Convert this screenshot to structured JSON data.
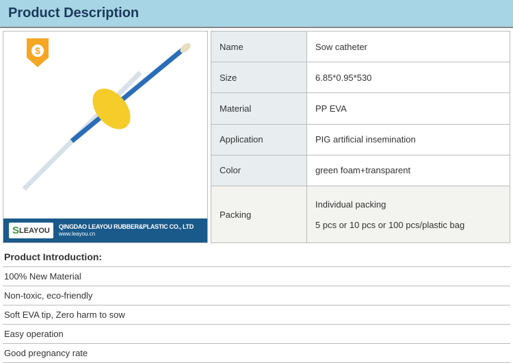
{
  "header": {
    "title": "Product Description"
  },
  "image": {
    "badge_color": "#f5a623",
    "footer": {
      "logo_text": "LEAYOU",
      "company": "QINGDAO LEAYOU RUBBER&PLASTIC CO., LTD",
      "url": "www.leayou.cn"
    }
  },
  "specs": [
    {
      "label": "Name",
      "value": "Sow catheter"
    },
    {
      "label": "Size",
      "value": "6.85*0.95*530"
    },
    {
      "label": "Material",
      "value": " PP EVA"
    },
    {
      "label": "Application",
      "value": "PIG artificial insemination"
    },
    {
      "label": "Color",
      "value": "green foam+transparent"
    },
    {
      "label": "Packing",
      "value": "Individual packing\n\n5 pcs or 10 pcs or 100 pcs/plastic bag",
      "packing": true
    }
  ],
  "intro": {
    "title": "Product Introduction:",
    "items": [
      "100% New Material",
      "Non-toxic, eco-friendly",
      "Soft EVA tip, Zero harm to sow",
      "Easy operation",
      "Good pregnancy rate"
    ]
  },
  "colors": {
    "header_bg": "#a8d5e5",
    "tube_blue": "#2a6db8",
    "foam_yellow": "#f5cc2a",
    "tip": "#e8dfc0"
  }
}
